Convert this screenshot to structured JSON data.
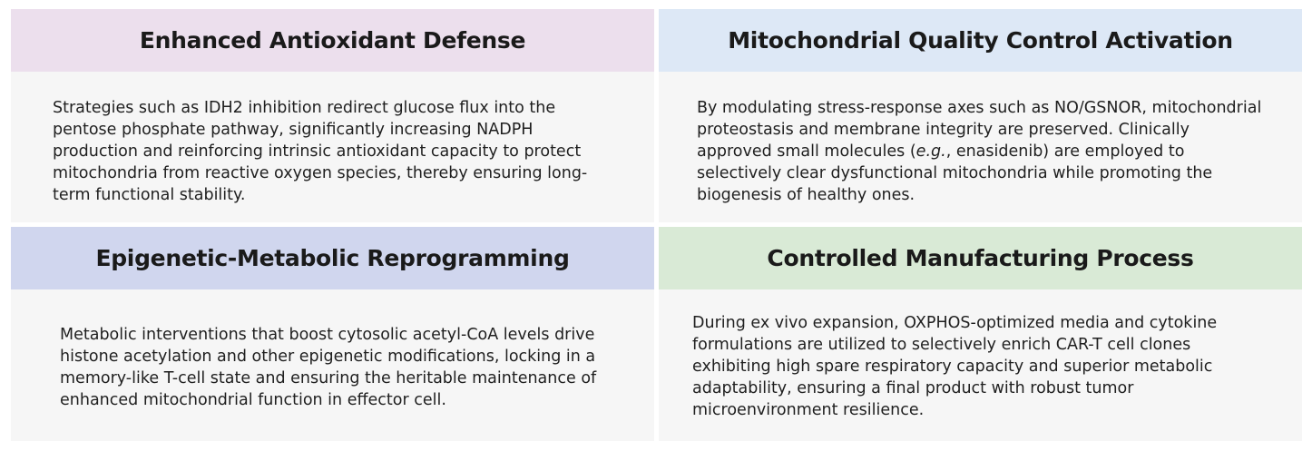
{
  "panels": [
    {
      "title": "Enhanced Antioxidant Defense",
      "header_color": "#ecdfed",
      "text": "Strategies such as IDH2 inhibition redirect glucose flux into the pentose phosphate pathway, significantly increasing NADPH production and reinforcing intrinsic antioxidant capacity to protect mitochondria from reactive oxygen species, thereby ensuring long-term functional stability."
    },
    {
      "title": "Mitochondrial Quality Control Activation",
      "header_color": "#dde8f6",
      "text_before": "By modulating stress-response axes such as NO/GSNOR, mitochondrial proteostasis and membrane integrity are preserved. Clinically approved small molecules (",
      "text_italic": "e.g.",
      "text_after": ", enasidenib) are employed to selectively clear dysfunctional mitochondria while promoting the biogenesis of healthy ones."
    },
    {
      "title": "Epigenetic-Metabolic Reprogramming",
      "header_color": "#d0d6ee",
      "text": "Metabolic interventions that boost cytosolic acetyl-CoA levels drive histone acetylation and other epigenetic modifications, locking in a memory-like T-cell state and ensuring the heritable maintenance of enhanced mitochondrial function in effector cell."
    },
    {
      "title": "Controlled Manufacturing Process",
      "header_color": "#d9ead6",
      "text": "During ex vivo expansion, OXPHOS-optimized media and cytokine formulations are utilized to selectively enrich CAR-T cell clones exhibiting high spare respiratory capacity and superior metabolic adaptability, ensuring a final product with robust tumor microenvironment resilience."
    }
  ]
}
